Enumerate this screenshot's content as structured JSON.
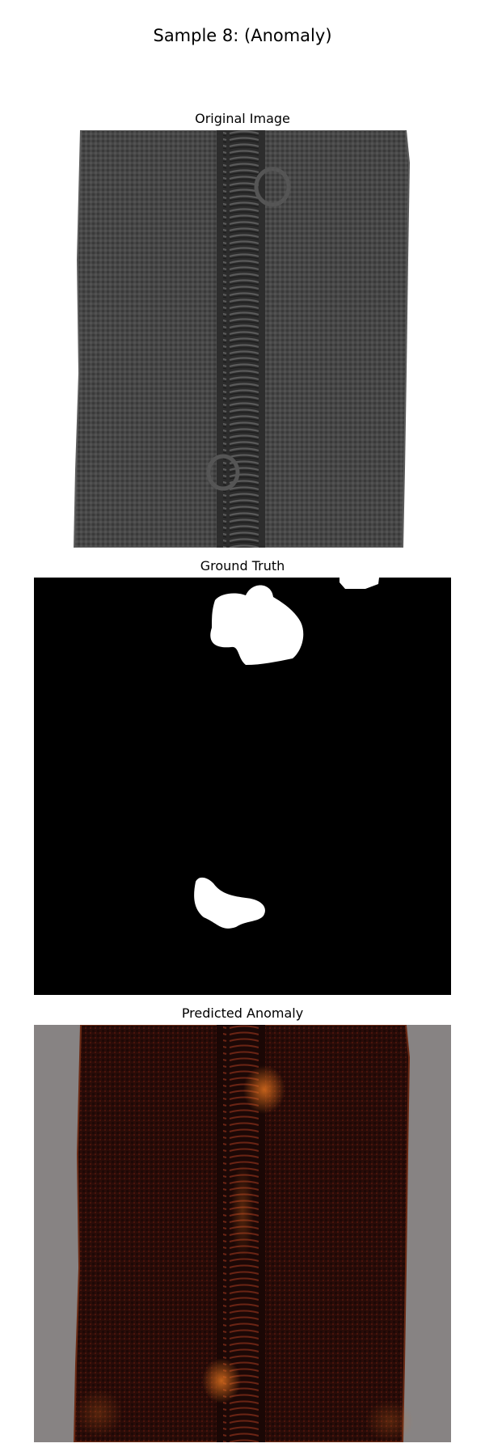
{
  "figure": {
    "title": "Sample 8: (Anomaly)"
  },
  "panels": [
    {
      "title": "Original Image",
      "content": "grayscale photo of zipper on fabric"
    },
    {
      "title": "Ground Truth",
      "content": "binary mask with white defect blobs on black"
    },
    {
      "title": "Predicted Anomaly",
      "content": "heatmap overlay on zipper, red/orange tint, gray border"
    }
  ],
  "colors": {
    "background": "#ffffff",
    "fabric": "#454545",
    "mask_background": "#000000",
    "mask_foreground": "#ffffff",
    "overlay_border": "#878383",
    "heat_dark": "#2a0c08",
    "heat_hot": "#e0701e"
  }
}
